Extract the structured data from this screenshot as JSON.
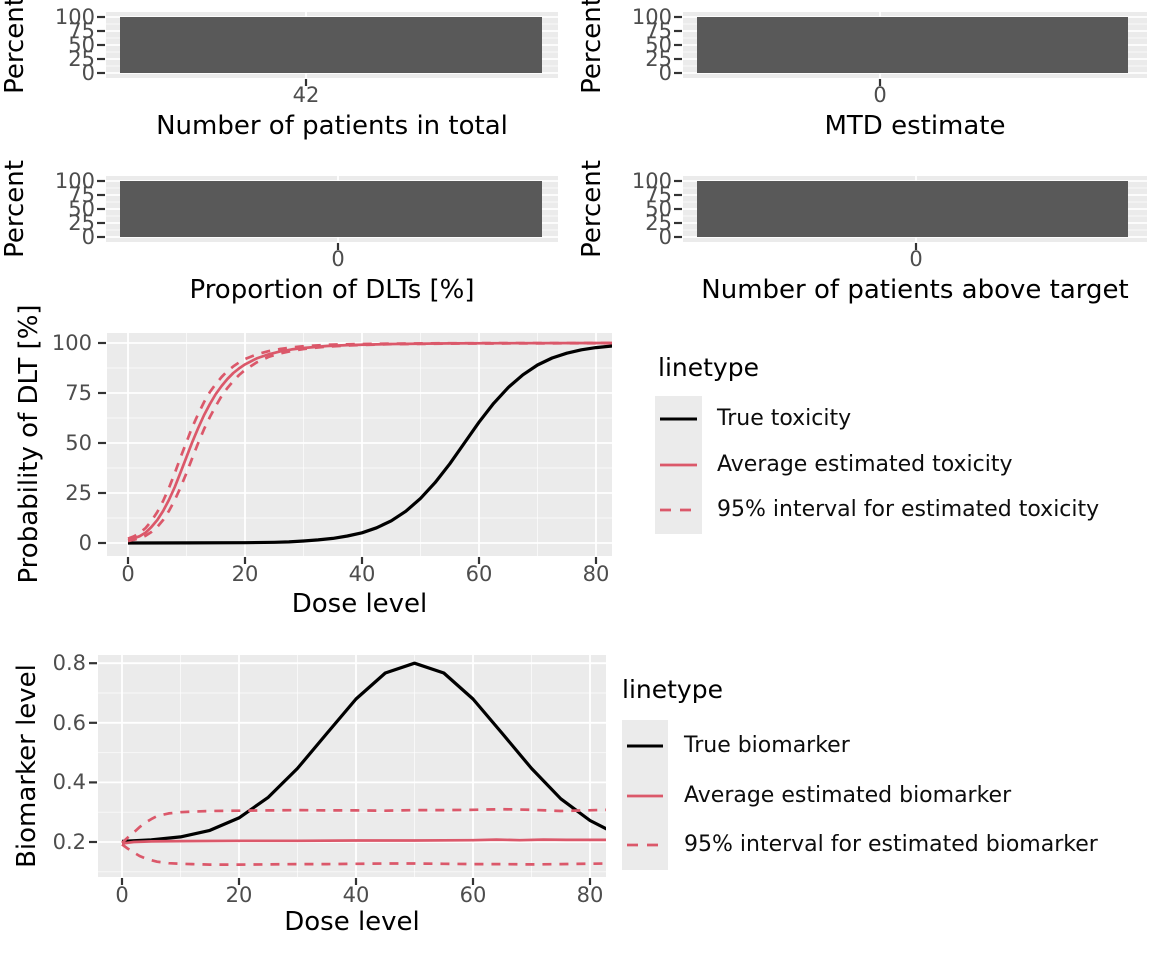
{
  "colors": {
    "bar_fill": "#595959",
    "panel_background": "#EBEBEB",
    "grid_major": "#FFFFFF",
    "grid_minor": "rgba(255,255,255,0.65)",
    "tick_label": "#4D4D4D",
    "tick_mark": "#333333",
    "black_line": "#000000",
    "pink_line": "#DB586A",
    "legend_key_bg": "#EBEBEB",
    "text": "#000000"
  },
  "chart_data": [
    {
      "type": "bar",
      "panel": "top-left",
      "xlabel": "Number of patients in total",
      "ylabel": "Percent",
      "categories": [
        "42"
      ],
      "values": [
        100
      ],
      "yticks": [
        "100",
        "75",
        "50",
        "25",
        "0"
      ],
      "ytick_values": [
        100,
        75,
        50,
        25,
        0
      ],
      "ylim": [
        0,
        100
      ],
      "grid": true
    },
    {
      "type": "bar",
      "panel": "top-right",
      "xlabel": "MTD estimate",
      "ylabel": "Percent",
      "categories": [
        "0"
      ],
      "values": [
        100
      ],
      "yticks": [
        "100",
        "75",
        "50",
        "25",
        "0"
      ],
      "ytick_values": [
        100,
        75,
        50,
        25,
        0
      ],
      "ylim": [
        0,
        100
      ],
      "grid": true
    },
    {
      "type": "bar",
      "panel": "mid-left",
      "xlabel": "Proportion of DLTs [%]",
      "ylabel": "Percent",
      "categories": [
        "0"
      ],
      "values": [
        100
      ],
      "yticks": [
        "100",
        "75",
        "50",
        "25",
        "0"
      ],
      "ytick_values": [
        100,
        75,
        50,
        25,
        0
      ],
      "ylim": [
        0,
        100
      ],
      "grid": true
    },
    {
      "type": "bar",
      "panel": "mid-right",
      "xlabel": "Number of patients above target",
      "ylabel": "Percent",
      "categories": [
        "0"
      ],
      "values": [
        100
      ],
      "yticks": [
        "100",
        "75",
        "50",
        "25",
        "0"
      ],
      "ytick_values": [
        100,
        75,
        50,
        25,
        0
      ],
      "ylim": [
        0,
        100
      ],
      "grid": true
    },
    {
      "type": "line",
      "panel": "dose-toxicity",
      "xlabel": "Dose level",
      "ylabel": "Probability of DLT [%]",
      "xlim": [
        0,
        80
      ],
      "ylim": [
        0,
        100
      ],
      "xticks": [
        "0",
        "20",
        "40",
        "60",
        "80"
      ],
      "xtick_values": [
        0,
        20,
        40,
        60,
        80
      ],
      "yticks": [
        "100",
        "75",
        "50",
        "25",
        "0"
      ],
      "ytick_values": [
        100,
        75,
        50,
        25,
        0
      ],
      "grid": true,
      "legend": {
        "title": "linetype",
        "position": "right",
        "items": [
          {
            "label": "True toxicity",
            "color": "black",
            "style": "solid"
          },
          {
            "label": "Average estimated toxicity",
            "color": "pink",
            "style": "solid"
          },
          {
            "label": "95% interval for estimated toxicity",
            "color": "pink",
            "style": "dashed"
          }
        ]
      },
      "series": [
        {
          "name": "True toxicity",
          "color": "black",
          "style": "solid",
          "points": [
            [
              0,
              0
            ],
            [
              10,
              0.05
            ],
            [
              20,
              0.15
            ],
            [
              25,
              0.35
            ],
            [
              27.5,
              0.55
            ],
            [
              30,
              1.0
            ],
            [
              32.5,
              1.55
            ],
            [
              35,
              2.3
            ],
            [
              37.5,
              3.5
            ],
            [
              40,
              5.1
            ],
            [
              42.5,
              7.6
            ],
            [
              45,
              11.1
            ],
            [
              47.5,
              15.9
            ],
            [
              50,
              22.3
            ],
            [
              52.5,
              30.2
            ],
            [
              55,
              39.6
            ],
            [
              57.5,
              50
            ],
            [
              60,
              60.4
            ],
            [
              62.5,
              69.8
            ],
            [
              65,
              77.8
            ],
            [
              67.5,
              84.1
            ],
            [
              70,
              89
            ],
            [
              72.5,
              92.5
            ],
            [
              75,
              94.9
            ],
            [
              77.5,
              96.6
            ],
            [
              80,
              97.7
            ],
            [
              83,
              98.6
            ]
          ]
        },
        {
          "name": "Average estimated toxicity",
          "color": "pink",
          "style": "solid",
          "points": [
            [
              0,
              1.5
            ],
            [
              1,
              2.3
            ],
            [
              2,
              3.4
            ],
            [
              3,
              5.2
            ],
            [
              4,
              8
            ],
            [
              5,
              11.5
            ],
            [
              6,
              16
            ],
            [
              7,
              21.5
            ],
            [
              8,
              28
            ],
            [
              9,
              35.5
            ],
            [
              10,
              43
            ],
            [
              11,
              50.5
            ],
            [
              12,
              57.5
            ],
            [
              13,
              64
            ],
            [
              14,
              69.5
            ],
            [
              15,
              74.5
            ],
            [
              16,
              78.5
            ],
            [
              17,
              82
            ],
            [
              18,
              85
            ],
            [
              19,
              87.3
            ],
            [
              20,
              89.3
            ],
            [
              22,
              92.3
            ],
            [
              24,
              94.3
            ],
            [
              26,
              95.8
            ],
            [
              28,
              96.8
            ],
            [
              30,
              97.5
            ],
            [
              34,
              98.5
            ],
            [
              38,
              99
            ],
            [
              45,
              99.5
            ],
            [
              55,
              99.8
            ],
            [
              65,
              99.9
            ],
            [
              83,
              100
            ]
          ]
        },
        {
          "name": "95% interval upper bound",
          "color": "pink",
          "style": "dashed",
          "points": [
            [
              0,
              2.2
            ],
            [
              1,
              3.3
            ],
            [
              2,
              5
            ],
            [
              3,
              7.5
            ],
            [
              4,
              11
            ],
            [
              5,
              15.5
            ],
            [
              6,
              21
            ],
            [
              7,
              27.5
            ],
            [
              8,
              35
            ],
            [
              9,
              43
            ],
            [
              10,
              50.5
            ],
            [
              11,
              58
            ],
            [
              12,
              64.5
            ],
            [
              13,
              70.5
            ],
            [
              14,
              75.5
            ],
            [
              15,
              79.5
            ],
            [
              16,
              83
            ],
            [
              17,
              86
            ],
            [
              18,
              88.3
            ],
            [
              19,
              90.3
            ],
            [
              20,
              92
            ],
            [
              22,
              94.3
            ],
            [
              24,
              95.9
            ],
            [
              26,
              97
            ],
            [
              28,
              97.8
            ],
            [
              30,
              98.4
            ],
            [
              34,
              99.1
            ],
            [
              38,
              99.4
            ],
            [
              45,
              99.7
            ],
            [
              55,
              99.9
            ],
            [
              83,
              100
            ]
          ]
        },
        {
          "name": "95% interval lower bound",
          "color": "pink",
          "style": "dashed",
          "points": [
            [
              0,
              1
            ],
            [
              1,
              1.6
            ],
            [
              2,
              2.4
            ],
            [
              3,
              3.6
            ],
            [
              4,
              5.5
            ],
            [
              5,
              8
            ],
            [
              6,
              11.5
            ],
            [
              7,
              16
            ],
            [
              8,
              21.5
            ],
            [
              9,
              28
            ],
            [
              10,
              35
            ],
            [
              11,
              42.5
            ],
            [
              12,
              50
            ],
            [
              13,
              57
            ],
            [
              14,
              63
            ],
            [
              15,
              68.5
            ],
            [
              16,
              73.5
            ],
            [
              17,
              77.5
            ],
            [
              18,
              81
            ],
            [
              19,
              84
            ],
            [
              20,
              86.5
            ],
            [
              22,
              90.3
            ],
            [
              24,
              93
            ],
            [
              26,
              94.8
            ],
            [
              28,
              96
            ],
            [
              30,
              97
            ],
            [
              34,
              98.2
            ],
            [
              38,
              98.8
            ],
            [
              45,
              99.4
            ],
            [
              55,
              99.7
            ],
            [
              83,
              99.9
            ]
          ]
        }
      ]
    },
    {
      "type": "line",
      "panel": "dose-biomarker",
      "xlabel": "Dose level",
      "ylabel": "Biomarker level",
      "xlim": [
        0,
        80
      ],
      "ylim": [
        0.08,
        0.83
      ],
      "xticks": [
        "0",
        "20",
        "40",
        "60",
        "80"
      ],
      "xtick_values": [
        0,
        20,
        40,
        60,
        80
      ],
      "yticks": [
        "0.8",
        "0.6",
        "0.4",
        "0.2"
      ],
      "ytick_values": [
        0.8,
        0.6,
        0.4,
        0.2
      ],
      "grid": true,
      "legend": {
        "title": "linetype",
        "position": "right",
        "items": [
          {
            "label": "True biomarker",
            "color": "black",
            "style": "solid"
          },
          {
            "label": "Average estimated biomarker",
            "color": "pink",
            "style": "solid"
          },
          {
            "label": "95% interval for estimated biomarker",
            "color": "pink",
            "style": "dashed"
          }
        ]
      },
      "series": [
        {
          "name": "True biomarker",
          "color": "black",
          "style": "solid",
          "points": [
            [
              0,
              0.202
            ],
            [
              5,
              0.207
            ],
            [
              10,
              0.217
            ],
            [
              15,
              0.239
            ],
            [
              20,
              0.281
            ],
            [
              25,
              0.35
            ],
            [
              30,
              0.447
            ],
            [
              35,
              0.564
            ],
            [
              40,
              0.68
            ],
            [
              45,
              0.767
            ],
            [
              50,
              0.8
            ],
            [
              55,
              0.767
            ],
            [
              60,
              0.68
            ],
            [
              65,
              0.564
            ],
            [
              70,
              0.447
            ],
            [
              75,
              0.345
            ],
            [
              80,
              0.272
            ],
            [
              83,
              0.242
            ]
          ]
        },
        {
          "name": "Average estimated biomarker",
          "color": "pink",
          "style": "solid",
          "points": [
            [
              0,
              0.195
            ],
            [
              2,
              0.2
            ],
            [
              5,
              0.202
            ],
            [
              10,
              0.203
            ],
            [
              20,
              0.204
            ],
            [
              30,
              0.204
            ],
            [
              40,
              0.205
            ],
            [
              50,
              0.205
            ],
            [
              60,
              0.206
            ],
            [
              64,
              0.208
            ],
            [
              68,
              0.206
            ],
            [
              72,
              0.208
            ],
            [
              76,
              0.207
            ],
            [
              83,
              0.207
            ]
          ]
        },
        {
          "name": "95% interval upper bound",
          "color": "pink",
          "style": "dashed",
          "points": [
            [
              0,
              0.197
            ],
            [
              1,
              0.215
            ],
            [
              2,
              0.232
            ],
            [
              3,
              0.25
            ],
            [
              4,
              0.265
            ],
            [
              5,
              0.277
            ],
            [
              6,
              0.287
            ],
            [
              8,
              0.296
            ],
            [
              10,
              0.3
            ],
            [
              12,
              0.302
            ],
            [
              15,
              0.304
            ],
            [
              20,
              0.305
            ],
            [
              25,
              0.306
            ],
            [
              30,
              0.307
            ],
            [
              35,
              0.306
            ],
            [
              40,
              0.306
            ],
            [
              45,
              0.305
            ],
            [
              50,
              0.307
            ],
            [
              55,
              0.307
            ],
            [
              60,
              0.308
            ],
            [
              65,
              0.31
            ],
            [
              70,
              0.308
            ],
            [
              75,
              0.304
            ],
            [
              83,
              0.308
            ]
          ]
        },
        {
          "name": "95% interval lower bound",
          "color": "pink",
          "style": "dashed",
          "points": [
            [
              0,
              0.192
            ],
            [
              1,
              0.178
            ],
            [
              2,
              0.165
            ],
            [
              3,
              0.153
            ],
            [
              4,
              0.145
            ],
            [
              5,
              0.139
            ],
            [
              6,
              0.134
            ],
            [
              8,
              0.129
            ],
            [
              10,
              0.127
            ],
            [
              12,
              0.126
            ],
            [
              15,
              0.124
            ],
            [
              20,
              0.124
            ],
            [
              25,
              0.125
            ],
            [
              30,
              0.126
            ],
            [
              35,
              0.126
            ],
            [
              40,
              0.127
            ],
            [
              45,
              0.128
            ],
            [
              50,
              0.128
            ],
            [
              55,
              0.127
            ],
            [
              60,
              0.126
            ],
            [
              65,
              0.126
            ],
            [
              70,
              0.125
            ],
            [
              75,
              0.126
            ],
            [
              83,
              0.128
            ]
          ]
        }
      ]
    }
  ]
}
